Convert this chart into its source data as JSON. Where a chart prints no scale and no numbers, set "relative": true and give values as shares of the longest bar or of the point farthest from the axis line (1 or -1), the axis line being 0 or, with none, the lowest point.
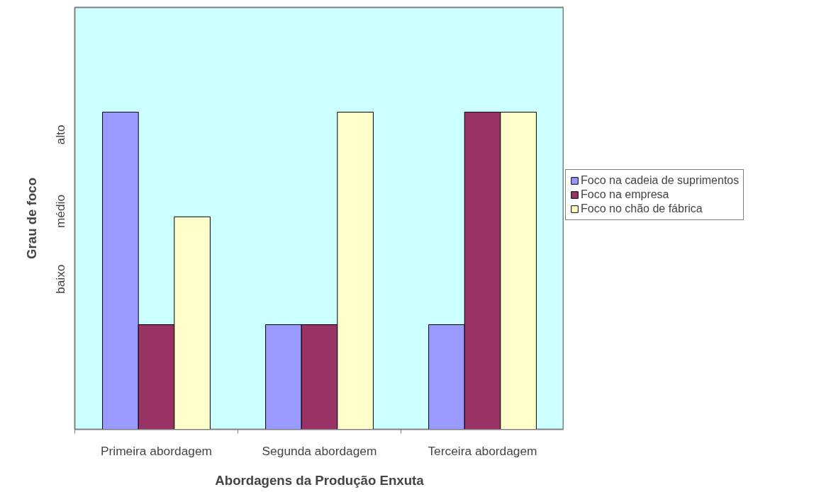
{
  "chart_data": {
    "type": "bar",
    "relative": true,
    "xlabel": "Abordagens da Produção Enxuta",
    "ylabel": "Grau de foco",
    "annotations": [
      "baixo",
      "médio",
      "alto"
    ],
    "categories": [
      "Primeira abordagem",
      "Segunda abordagem",
      "Terceira abordagem"
    ],
    "series": [
      {
        "name": "Foco na cadeia de suprimentos",
        "color": "#9999ff",
        "values": [
          1,
          0.33,
          0.33
        ]
      },
      {
        "name": "Foco na empresa",
        "color": "#993366",
        "values": [
          0.33,
          0.33,
          1
        ]
      },
      {
        "name": "Foco no chão de fábrica",
        "color": "#ffffcc",
        "values": [
          0.67,
          1,
          1
        ]
      }
    ],
    "legend": "right",
    "grid": false
  }
}
